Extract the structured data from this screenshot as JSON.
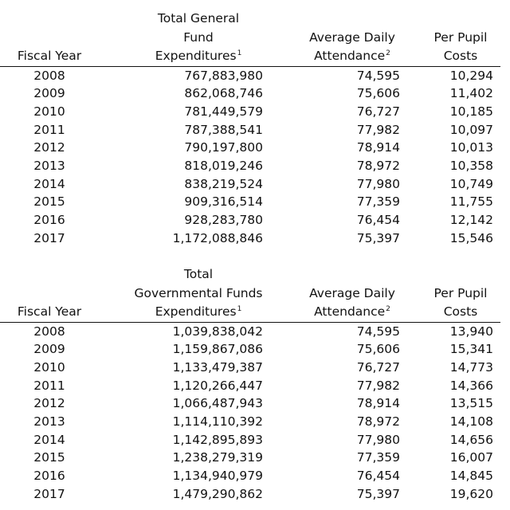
{
  "tables": [
    {
      "headers": {
        "year": "Fiscal Year",
        "exp_l1": "Total General",
        "exp_l2": "Fund",
        "exp_l3": "Expenditures",
        "exp_sup": "1",
        "att_l1": "Average Daily",
        "att_l2": "Attendance",
        "att_sup": "2",
        "ppc_l1": "Per Pupil",
        "ppc_l2": "Costs"
      },
      "rows": [
        {
          "year": "2008",
          "expenditures": "767,883,980",
          "attendance": "74,595",
          "per_pupil": "10,294"
        },
        {
          "year": "2009",
          "expenditures": "862,068,746",
          "attendance": "75,606",
          "per_pupil": "11,402"
        },
        {
          "year": "2010",
          "expenditures": "781,449,579",
          "attendance": "76,727",
          "per_pupil": "10,185"
        },
        {
          "year": "2011",
          "expenditures": "787,388,541",
          "attendance": "77,982",
          "per_pupil": "10,097"
        },
        {
          "year": "2012",
          "expenditures": "790,197,800",
          "attendance": "78,914",
          "per_pupil": "10,013"
        },
        {
          "year": "2013",
          "expenditures": "818,019,246",
          "attendance": "78,972",
          "per_pupil": "10,358"
        },
        {
          "year": "2014",
          "expenditures": "838,219,524",
          "attendance": "77,980",
          "per_pupil": "10,749"
        },
        {
          "year": "2015",
          "expenditures": "909,316,514",
          "attendance": "77,359",
          "per_pupil": "11,755"
        },
        {
          "year": "2016",
          "expenditures": "928,283,780",
          "attendance": "76,454",
          "per_pupil": "12,142"
        },
        {
          "year": "2017",
          "expenditures": "1,172,088,846",
          "attendance": "75,397",
          "per_pupil": "15,546"
        }
      ]
    },
    {
      "headers": {
        "year": "Fiscal Year",
        "exp_l1": "Total",
        "exp_l2": "Governmental Funds",
        "exp_l3": "Expenditures",
        "exp_sup": "1",
        "att_l1": "Average Daily",
        "att_l2": "Attendance",
        "att_sup": "2",
        "ppc_l1": "Per Pupil",
        "ppc_l2": "Costs"
      },
      "rows": [
        {
          "year": "2008",
          "expenditures": "1,039,838,042",
          "attendance": "74,595",
          "per_pupil": "13,940"
        },
        {
          "year": "2009",
          "expenditures": "1,159,867,086",
          "attendance": "75,606",
          "per_pupil": "15,341"
        },
        {
          "year": "2010",
          "expenditures": "1,133,479,387",
          "attendance": "76,727",
          "per_pupil": "14,773"
        },
        {
          "year": "2011",
          "expenditures": "1,120,266,447",
          "attendance": "77,982",
          "per_pupil": "14,366"
        },
        {
          "year": "2012",
          "expenditures": "1,066,487,943",
          "attendance": "78,914",
          "per_pupil": "13,515"
        },
        {
          "year": "2013",
          "expenditures": "1,114,110,392",
          "attendance": "78,972",
          "per_pupil": "14,108"
        },
        {
          "year": "2014",
          "expenditures": "1,142,895,893",
          "attendance": "77,980",
          "per_pupil": "14,656"
        },
        {
          "year": "2015",
          "expenditures": "1,238,279,319",
          "attendance": "77,359",
          "per_pupil": "16,007"
        },
        {
          "year": "2016",
          "expenditures": "1,134,940,979",
          "attendance": "76,454",
          "per_pupil": "14,845"
        },
        {
          "year": "2017",
          "expenditures": "1,479,290,862",
          "attendance": "75,397",
          "per_pupil": "19,620"
        }
      ]
    }
  ]
}
